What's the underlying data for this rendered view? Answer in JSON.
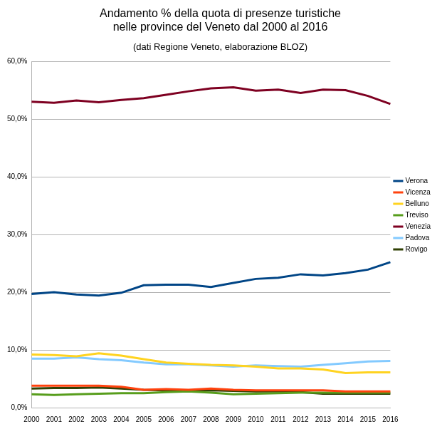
{
  "chart_data": {
    "type": "line",
    "title": [
      "Andamento % della quota di presenze turistiche",
      "nelle province del Veneto dal 2000 al 2016"
    ],
    "subtitle": "(dati Regione Veneto, elaborazione BLOZ)",
    "categories": [
      "2000",
      "2001",
      "2002",
      "2003",
      "2004",
      "2005",
      "2006",
      "2007",
      "2008",
      "2009",
      "2010",
      "2011",
      "2012",
      "2013",
      "2014",
      "2015",
      "2016"
    ],
    "series": [
      {
        "name": "Verona",
        "color": "#004586",
        "values": [
          19.7,
          20.0,
          19.6,
          19.4,
          19.9,
          21.2,
          21.3,
          21.3,
          20.9,
          21.6,
          22.3,
          22.5,
          23.1,
          22.9,
          23.3,
          23.9,
          25.2
        ]
      },
      {
        "name": "Vicenza",
        "color": "#ff420e",
        "values": [
          3.8,
          3.8,
          3.8,
          3.8,
          3.6,
          3.1,
          3.2,
          3.1,
          3.3,
          3.1,
          3.0,
          3.0,
          3.0,
          3.0,
          2.8,
          2.8,
          2.8
        ]
      },
      {
        "name": "Belluno",
        "color": "#ffd320",
        "values": [
          9.2,
          9.1,
          8.9,
          9.4,
          9.0,
          8.4,
          7.8,
          7.6,
          7.4,
          7.3,
          7.1,
          6.8,
          6.8,
          6.6,
          6.0,
          6.1,
          6.1
        ]
      },
      {
        "name": "Treviso",
        "color": "#579d1c",
        "values": [
          2.3,
          2.2,
          2.3,
          2.4,
          2.5,
          2.5,
          2.7,
          2.8,
          2.6,
          2.3,
          2.4,
          2.5,
          2.6,
          2.6,
          2.6,
          2.6,
          2.6
        ]
      },
      {
        "name": "Venezia",
        "color": "#7e0021",
        "values": [
          53.0,
          52.8,
          53.2,
          52.9,
          53.3,
          53.6,
          54.2,
          54.8,
          55.3,
          55.5,
          54.9,
          55.1,
          54.5,
          55.1,
          55.0,
          54.0,
          52.6
        ]
      },
      {
        "name": "Padova",
        "color": "#83caff",
        "values": [
          8.5,
          8.5,
          8.7,
          8.4,
          8.2,
          7.8,
          7.5,
          7.5,
          7.3,
          7.1,
          7.3,
          7.2,
          7.1,
          7.4,
          7.7,
          8.0,
          8.1
        ]
      },
      {
        "name": "Rovigo",
        "color": "#314004",
        "values": [
          3.3,
          3.4,
          3.4,
          3.5,
          3.3,
          3.1,
          3.0,
          2.9,
          3.0,
          2.9,
          2.8,
          2.8,
          2.7,
          2.4,
          2.4,
          2.4,
          2.4
        ]
      }
    ],
    "ylim": [
      0,
      60
    ],
    "yticks": [
      {
        "value": 0,
        "label": "0,0%"
      },
      {
        "value": 10,
        "label": "10,0%"
      },
      {
        "value": 20,
        "label": "20,0%"
      },
      {
        "value": 30,
        "label": "30,0%"
      },
      {
        "value": 40,
        "label": "40,0%"
      },
      {
        "value": 50,
        "label": "50,0%"
      },
      {
        "value": 60,
        "label": "60,0%"
      }
    ],
    "grid": true,
    "legend": "right"
  }
}
